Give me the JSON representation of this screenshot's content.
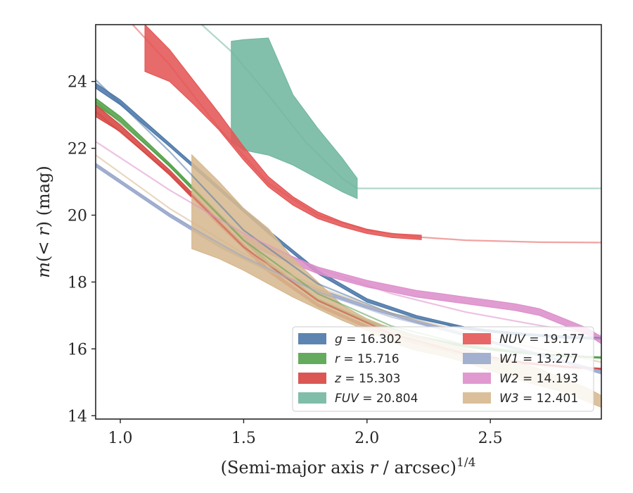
{
  "chart_data": {
    "type": "line",
    "xlabel": "(Semi-major axis r / arcsec)^{1/4}",
    "ylabel": "m(< r) (mag)",
    "xlim": [
      0.9,
      2.95
    ],
    "ylim": [
      25.7,
      13.9
    ],
    "y_inverted": true,
    "x_ticks": [
      1.0,
      1.5,
      2.0,
      2.5
    ],
    "x_tick_labels": [
      "1.0",
      "1.5",
      "2.0",
      "2.5"
    ],
    "y_ticks": [
      14,
      16,
      18,
      20,
      22,
      24
    ],
    "y_tick_labels": [
      "14",
      "16",
      "18",
      "20",
      "22",
      "24"
    ],
    "grid": false,
    "legend_position": "lower-right",
    "series": [
      {
        "name": "g = 16.302",
        "legend_var": "g",
        "legend_value": "16.302",
        "color": "#4c78a8",
        "data_x": [
          0.9,
          1.0,
          1.2,
          1.4,
          1.6,
          1.8,
          2.0,
          2.2,
          2.4,
          2.6,
          2.8,
          2.95
        ],
        "data_lo": [
          23.95,
          23.45,
          22.15,
          20.85,
          19.55,
          18.35,
          17.5,
          17.0,
          16.65,
          16.48,
          16.38,
          16.33
        ],
        "data_hi": [
          23.8,
          23.3,
          22.05,
          20.75,
          19.45,
          18.25,
          17.4,
          16.92,
          16.58,
          16.42,
          16.32,
          16.28
        ],
        "model_x": [
          0.9,
          1.2,
          1.5,
          1.8,
          2.1,
          2.4,
          2.7,
          2.95
        ],
        "model_y": [
          24.05,
          21.9,
          19.55,
          17.95,
          17.05,
          16.62,
          16.42,
          16.33
        ]
      },
      {
        "name": "r = 15.716",
        "legend_var": "r",
        "legend_value": "15.716",
        "color": "#54a24b",
        "data_x": [
          0.9,
          1.0,
          1.2,
          1.4,
          1.6,
          1.8,
          2.0,
          2.2,
          2.4,
          2.6,
          2.8,
          2.95
        ],
        "data_lo": [
          23.5,
          22.95,
          21.55,
          20.05,
          18.6,
          17.5,
          16.85,
          16.4,
          16.1,
          15.92,
          15.8,
          15.76
        ],
        "data_hi": [
          23.3,
          22.8,
          21.45,
          19.95,
          18.5,
          17.42,
          16.78,
          16.34,
          16.05,
          15.88,
          15.76,
          15.72
        ],
        "model_x": [
          0.9,
          1.2,
          1.5,
          1.8,
          2.1,
          2.4,
          2.7,
          2.95
        ],
        "model_y": [
          23.4,
          21.5,
          19.25,
          17.65,
          16.68,
          16.12,
          15.86,
          15.74
        ]
      },
      {
        "name": "z = 15.303",
        "legend_var": "z",
        "legend_value": "15.303",
        "color": "#d64541",
        "data_x": [
          0.9,
          1.0,
          1.2,
          1.4,
          1.6,
          1.8,
          2.0,
          2.2,
          2.4,
          2.6,
          2.8,
          2.95
        ],
        "data_lo": [
          23.3,
          22.7,
          21.35,
          19.85,
          18.4,
          17.35,
          16.7,
          16.2,
          15.85,
          15.62,
          15.48,
          15.42
        ],
        "data_hi": [
          22.95,
          22.5,
          21.2,
          19.7,
          18.3,
          17.27,
          16.62,
          16.14,
          15.8,
          15.58,
          15.44,
          15.38
        ],
        "model_x": [
          0.9,
          1.2,
          1.5,
          1.8,
          2.1,
          2.4,
          2.7,
          2.95
        ],
        "model_y": [
          23.1,
          21.25,
          19.05,
          17.45,
          16.45,
          15.85,
          15.55,
          15.4
        ]
      },
      {
        "name": "FUV = 20.804",
        "legend_var": "FUV",
        "legend_value": "20.804",
        "color": "#72b7a1",
        "data_x": [
          1.45,
          1.5,
          1.6,
          1.7,
          1.8,
          1.9,
          1.96
        ],
        "data_lo": [
          25.2,
          25.25,
          25.3,
          23.6,
          22.6,
          21.7,
          21.1
        ],
        "data_hi": [
          22.2,
          21.95,
          21.8,
          21.5,
          21.1,
          20.7,
          20.5
        ],
        "model_x": [
          1.33,
          1.45,
          1.6,
          1.75,
          1.9,
          1.96,
          2.3,
          2.95
        ],
        "model_y": [
          25.7,
          24.9,
          23.6,
          22.2,
          21.1,
          20.8,
          20.8,
          20.8
        ]
      },
      {
        "name": "NUV = 19.177",
        "legend_var": "NUV",
        "legend_value": "19.177",
        "color": "#e45756",
        "data_x": [
          1.1,
          1.2,
          1.3,
          1.4,
          1.5,
          1.6,
          1.7,
          1.8,
          1.9,
          2.0,
          2.1,
          2.22
        ],
        "data_lo": [
          25.7,
          24.95,
          24.0,
          23.05,
          22.05,
          21.15,
          20.55,
          20.1,
          19.8,
          19.58,
          19.45,
          19.4
        ],
        "data_hi": [
          24.3,
          24.0,
          23.3,
          22.55,
          21.65,
          20.85,
          20.3,
          19.9,
          19.65,
          19.45,
          19.33,
          19.27
        ],
        "model_x": [
          1.05,
          1.2,
          1.4,
          1.6,
          1.8,
          2.0,
          2.2,
          2.4,
          2.7,
          2.95
        ],
        "model_y": [
          25.7,
          24.5,
          22.6,
          20.95,
          20.0,
          19.55,
          19.35,
          19.25,
          19.19,
          19.18
        ]
      },
      {
        "name": "W1 = 13.277",
        "legend_var": "W1",
        "legend_value": "13.277",
        "color": "#9aa9cc",
        "data_x": [
          0.9,
          1.0,
          1.2,
          1.4,
          1.6,
          1.8,
          2.0,
          2.2,
          2.4,
          2.6,
          2.8,
          2.95
        ],
        "data_lo": [
          21.55,
          21.05,
          20.05,
          19.15,
          18.4,
          17.8,
          17.3,
          16.85,
          16.45,
          16.05,
          15.65,
          15.35
        ],
        "data_hi": [
          21.45,
          20.95,
          19.95,
          19.05,
          18.32,
          17.72,
          17.22,
          16.78,
          16.38,
          15.98,
          15.58,
          15.25
        ],
        "model_x": [
          0.9,
          1.2,
          1.5,
          1.8,
          2.1,
          2.4,
          2.7,
          2.95
        ],
        "model_y": [
          21.5,
          20.0,
          18.75,
          17.7,
          16.95,
          16.4,
          15.85,
          15.3
        ]
      },
      {
        "name": "W2 = 14.193",
        "legend_var": "W2",
        "legend_value": "14.193",
        "color": "#dd8fcb",
        "data_x": [
          1.5,
          1.6,
          1.7,
          1.8,
          1.9,
          2.0,
          2.1,
          2.2,
          2.3,
          2.4,
          2.5,
          2.6,
          2.7,
          2.8,
          2.9,
          2.95
        ],
        "data_lo": [
          19.4,
          19.05,
          18.75,
          18.45,
          18.25,
          18.05,
          17.9,
          17.75,
          17.65,
          17.55,
          17.45,
          17.35,
          17.2,
          16.9,
          16.6,
          16.35
        ],
        "data_hi": [
          19.2,
          18.85,
          18.55,
          18.25,
          18.05,
          17.85,
          17.7,
          17.55,
          17.45,
          17.35,
          17.25,
          17.15,
          17.0,
          16.7,
          16.4,
          16.15
        ],
        "model_x": [
          0.9,
          1.2,
          1.5,
          1.8,
          2.1,
          2.4,
          2.7,
          2.95
        ],
        "model_y": [
          22.2,
          20.75,
          19.45,
          18.4,
          17.65,
          17.1,
          16.7,
          16.4
        ]
      },
      {
        "name": "W3 = 12.401",
        "legend_var": "W3",
        "legend_value": "12.401",
        "color": "#d6b88f",
        "data_x": [
          1.29,
          1.4,
          1.5,
          1.6,
          1.7,
          1.8,
          1.9,
          2.0,
          2.1,
          2.2,
          2.3,
          2.4,
          2.5,
          2.6,
          2.7,
          2.8,
          2.9,
          2.95
        ],
        "data_lo": [
          21.8,
          21.0,
          20.2,
          19.6,
          18.7,
          18.0,
          17.3,
          16.9,
          16.6,
          16.4,
          16.2,
          16.0,
          15.8,
          15.6,
          15.4,
          15.1,
          14.8,
          14.6
        ],
        "data_hi": [
          19.0,
          18.7,
          18.35,
          17.95,
          17.55,
          17.2,
          16.85,
          16.55,
          16.2,
          15.95,
          15.8,
          15.6,
          15.35,
          15.1,
          14.9,
          14.7,
          14.4,
          14.25
        ],
        "model_x": [
          0.9,
          1.2,
          1.5,
          1.8,
          2.1,
          2.4,
          2.7,
          2.95
        ],
        "model_y": [
          21.8,
          20.2,
          18.85,
          17.85,
          17.05,
          16.5,
          16.0,
          15.6
        ]
      }
    ]
  }
}
